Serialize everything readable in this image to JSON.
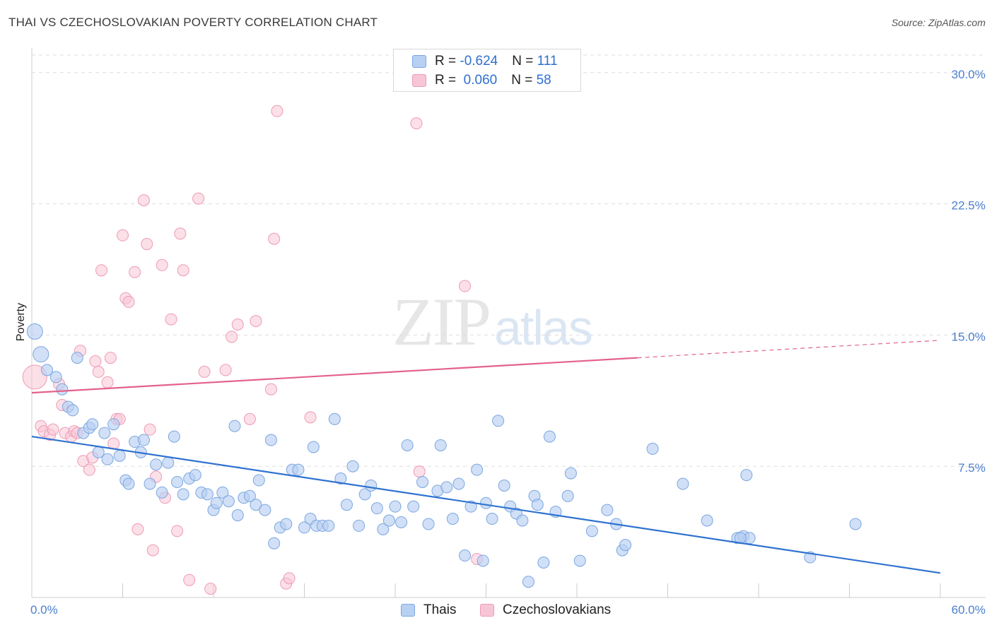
{
  "title": "THAI VS CZECHOSLOVAKIAN POVERTY CORRELATION CHART",
  "source": "Source: ZipAtlas.com",
  "watermark": {
    "zip": "ZIP",
    "atlas": "atlas"
  },
  "legend": {
    "thais": {
      "r_label": "R = ",
      "r_value": "-0.624",
      "n_label": "N = ",
      "n_value": "111"
    },
    "czech": {
      "r_label": "R = ",
      "r_value": " 0.060",
      "n_label": "N = ",
      "n_value": "58"
    }
  },
  "bottom_legend": {
    "thais": "Thais",
    "czech": "Czechoslovakians"
  },
  "colors": {
    "thais": "#7aa6e0",
    "thais_fill": "#b8d0f2",
    "thais_line": "#2f72d0",
    "czech": "#ef9ab5",
    "czech_fill": "#f7c6d6",
    "czech_line": "#e3628b",
    "axis_text": "#4a7fd0",
    "grid": "#dddddd"
  },
  "chart_data": {
    "type": "scatter",
    "title": "THAI VS CZECHOSLOVAKIAN POVERTY CORRELATION CHART",
    "xlabel": "",
    "ylabel": "Poverty",
    "xlim": [
      0,
      60
    ],
    "ylim": [
      0,
      31
    ],
    "x_tick_labels": [
      "0.0%",
      "60.0%"
    ],
    "y_ticks": [
      7.5,
      15.0,
      22.5,
      30.0
    ],
    "y_tick_labels": [
      "7.5%",
      "15.0%",
      "22.5%",
      "30.0%"
    ],
    "grid": "horizontal dashed",
    "legend_position": "top-center",
    "series": [
      {
        "name": "Thais",
        "R": -0.624,
        "N": 111,
        "trend": {
          "x0": 0,
          "y0": 9.2,
          "x1": 60,
          "y1": 1.4
        },
        "points": [
          [
            0.2,
            15.2
          ],
          [
            0.6,
            13.9
          ],
          [
            1.0,
            13.0
          ],
          [
            1.6,
            12.6
          ],
          [
            2.0,
            11.9
          ],
          [
            2.4,
            10.9
          ],
          [
            2.7,
            10.7
          ],
          [
            3.0,
            13.7
          ],
          [
            3.4,
            9.4
          ],
          [
            3.8,
            9.7
          ],
          [
            4.0,
            9.9
          ],
          [
            4.4,
            8.3
          ],
          [
            4.8,
            9.4
          ],
          [
            5.0,
            7.9
          ],
          [
            5.4,
            9.9
          ],
          [
            5.8,
            8.1
          ],
          [
            6.2,
            6.7
          ],
          [
            6.4,
            6.5
          ],
          [
            6.8,
            8.9
          ],
          [
            7.2,
            8.3
          ],
          [
            7.4,
            9.0
          ],
          [
            7.8,
            6.5
          ],
          [
            8.2,
            7.6
          ],
          [
            8.6,
            6.0
          ],
          [
            9.0,
            7.7
          ],
          [
            9.4,
            9.2
          ],
          [
            9.6,
            6.6
          ],
          [
            10.0,
            5.9
          ],
          [
            10.4,
            6.8
          ],
          [
            10.8,
            7.0
          ],
          [
            11.2,
            6.0
          ],
          [
            11.6,
            5.9
          ],
          [
            12.0,
            5.0
          ],
          [
            12.2,
            5.4
          ],
          [
            12.6,
            6.0
          ],
          [
            13.0,
            5.5
          ],
          [
            13.4,
            9.8
          ],
          [
            13.6,
            4.7
          ],
          [
            14.0,
            5.7
          ],
          [
            14.4,
            5.8
          ],
          [
            14.8,
            5.3
          ],
          [
            15.0,
            6.7
          ],
          [
            15.4,
            5.0
          ],
          [
            15.8,
            9.0
          ],
          [
            16.0,
            3.1
          ],
          [
            16.4,
            4.0
          ],
          [
            16.8,
            4.2
          ],
          [
            17.2,
            7.3
          ],
          [
            17.6,
            7.3
          ],
          [
            18.0,
            4.0
          ],
          [
            18.4,
            4.5
          ],
          [
            18.6,
            8.6
          ],
          [
            18.8,
            4.1
          ],
          [
            19.2,
            4.1
          ],
          [
            19.6,
            4.1
          ],
          [
            20.0,
            10.2
          ],
          [
            20.4,
            6.8
          ],
          [
            20.8,
            5.3
          ],
          [
            21.2,
            7.5
          ],
          [
            21.6,
            4.1
          ],
          [
            22.0,
            5.9
          ],
          [
            22.4,
            6.4
          ],
          [
            22.8,
            5.1
          ],
          [
            23.2,
            3.9
          ],
          [
            23.6,
            4.4
          ],
          [
            24.0,
            5.2
          ],
          [
            24.4,
            4.3
          ],
          [
            24.8,
            8.7
          ],
          [
            25.2,
            5.2
          ],
          [
            25.8,
            6.6
          ],
          [
            26.2,
            4.2
          ],
          [
            26.8,
            6.1
          ],
          [
            27.0,
            8.7
          ],
          [
            27.4,
            6.3
          ],
          [
            27.8,
            4.5
          ],
          [
            28.2,
            6.5
          ],
          [
            28.6,
            2.4
          ],
          [
            29.0,
            5.2
          ],
          [
            29.4,
            7.3
          ],
          [
            29.8,
            2.1
          ],
          [
            30.0,
            5.4
          ],
          [
            30.4,
            4.5
          ],
          [
            30.8,
            10.1
          ],
          [
            31.2,
            6.4
          ],
          [
            31.6,
            5.2
          ],
          [
            32.0,
            4.8
          ],
          [
            32.4,
            4.4
          ],
          [
            32.8,
            0.9
          ],
          [
            33.2,
            5.8
          ],
          [
            33.4,
            5.3
          ],
          [
            33.8,
            2.0
          ],
          [
            34.2,
            9.2
          ],
          [
            34.6,
            4.9
          ],
          [
            35.4,
            5.8
          ],
          [
            35.6,
            7.1
          ],
          [
            36.2,
            2.1
          ],
          [
            37.0,
            3.8
          ],
          [
            38.0,
            5.0
          ],
          [
            38.6,
            4.2
          ],
          [
            39.0,
            2.7
          ],
          [
            39.2,
            3.0
          ],
          [
            41.0,
            8.5
          ],
          [
            43.0,
            6.5
          ],
          [
            44.6,
            4.4
          ],
          [
            46.6,
            3.4
          ],
          [
            47.0,
            3.5
          ],
          [
            47.4,
            3.4
          ],
          [
            47.2,
            7.0
          ],
          [
            51.4,
            2.3
          ],
          [
            54.4,
            4.2
          ],
          [
            46.8,
            3.4
          ]
        ]
      },
      {
        "name": "Czechoslovakians",
        "R": 0.06,
        "N": 58,
        "trend": {
          "x0": 0,
          "y0": 11.7,
          "x1": 40,
          "y1": 13.7,
          "x2": 60,
          "y2": 14.7
        },
        "points": [
          [
            0.2,
            12.6
          ],
          [
            0.6,
            9.8
          ],
          [
            0.8,
            9.5
          ],
          [
            1.2,
            9.3
          ],
          [
            1.4,
            9.6
          ],
          [
            1.8,
            12.2
          ],
          [
            2.0,
            11.0
          ],
          [
            2.2,
            9.4
          ],
          [
            2.6,
            9.2
          ],
          [
            2.8,
            9.5
          ],
          [
            3.0,
            9.4
          ],
          [
            3.2,
            14.1
          ],
          [
            3.4,
            7.8
          ],
          [
            3.8,
            7.3
          ],
          [
            4.0,
            8.0
          ],
          [
            4.2,
            13.5
          ],
          [
            4.4,
            12.9
          ],
          [
            4.6,
            18.7
          ],
          [
            5.0,
            12.3
          ],
          [
            5.2,
            13.7
          ],
          [
            5.4,
            8.8
          ],
          [
            5.6,
            10.2
          ],
          [
            5.8,
            10.2
          ],
          [
            6.0,
            20.7
          ],
          [
            6.2,
            17.1
          ],
          [
            6.4,
            16.9
          ],
          [
            6.8,
            18.6
          ],
          [
            7.0,
            3.9
          ],
          [
            7.4,
            22.7
          ],
          [
            7.6,
            20.2
          ],
          [
            7.8,
            9.6
          ],
          [
            8.0,
            2.7
          ],
          [
            8.2,
            6.9
          ],
          [
            8.6,
            19.0
          ],
          [
            8.8,
            5.7
          ],
          [
            9.2,
            15.9
          ],
          [
            9.6,
            3.8
          ],
          [
            9.8,
            20.8
          ],
          [
            10.0,
            18.7
          ],
          [
            10.4,
            1.0
          ],
          [
            11.0,
            22.8
          ],
          [
            11.4,
            12.9
          ],
          [
            11.8,
            0.5
          ],
          [
            12.8,
            13.0
          ],
          [
            13.2,
            14.9
          ],
          [
            13.6,
            15.6
          ],
          [
            14.4,
            10.2
          ],
          [
            14.8,
            15.8
          ],
          [
            15.8,
            11.9
          ],
          [
            16.0,
            20.5
          ],
          [
            16.2,
            27.8
          ],
          [
            16.8,
            0.8
          ],
          [
            17.0,
            1.1
          ],
          [
            18.4,
            10.3
          ],
          [
            25.4,
            27.1
          ],
          [
            25.6,
            7.2
          ],
          [
            28.6,
            17.8
          ],
          [
            29.4,
            2.2
          ]
        ]
      }
    ]
  }
}
